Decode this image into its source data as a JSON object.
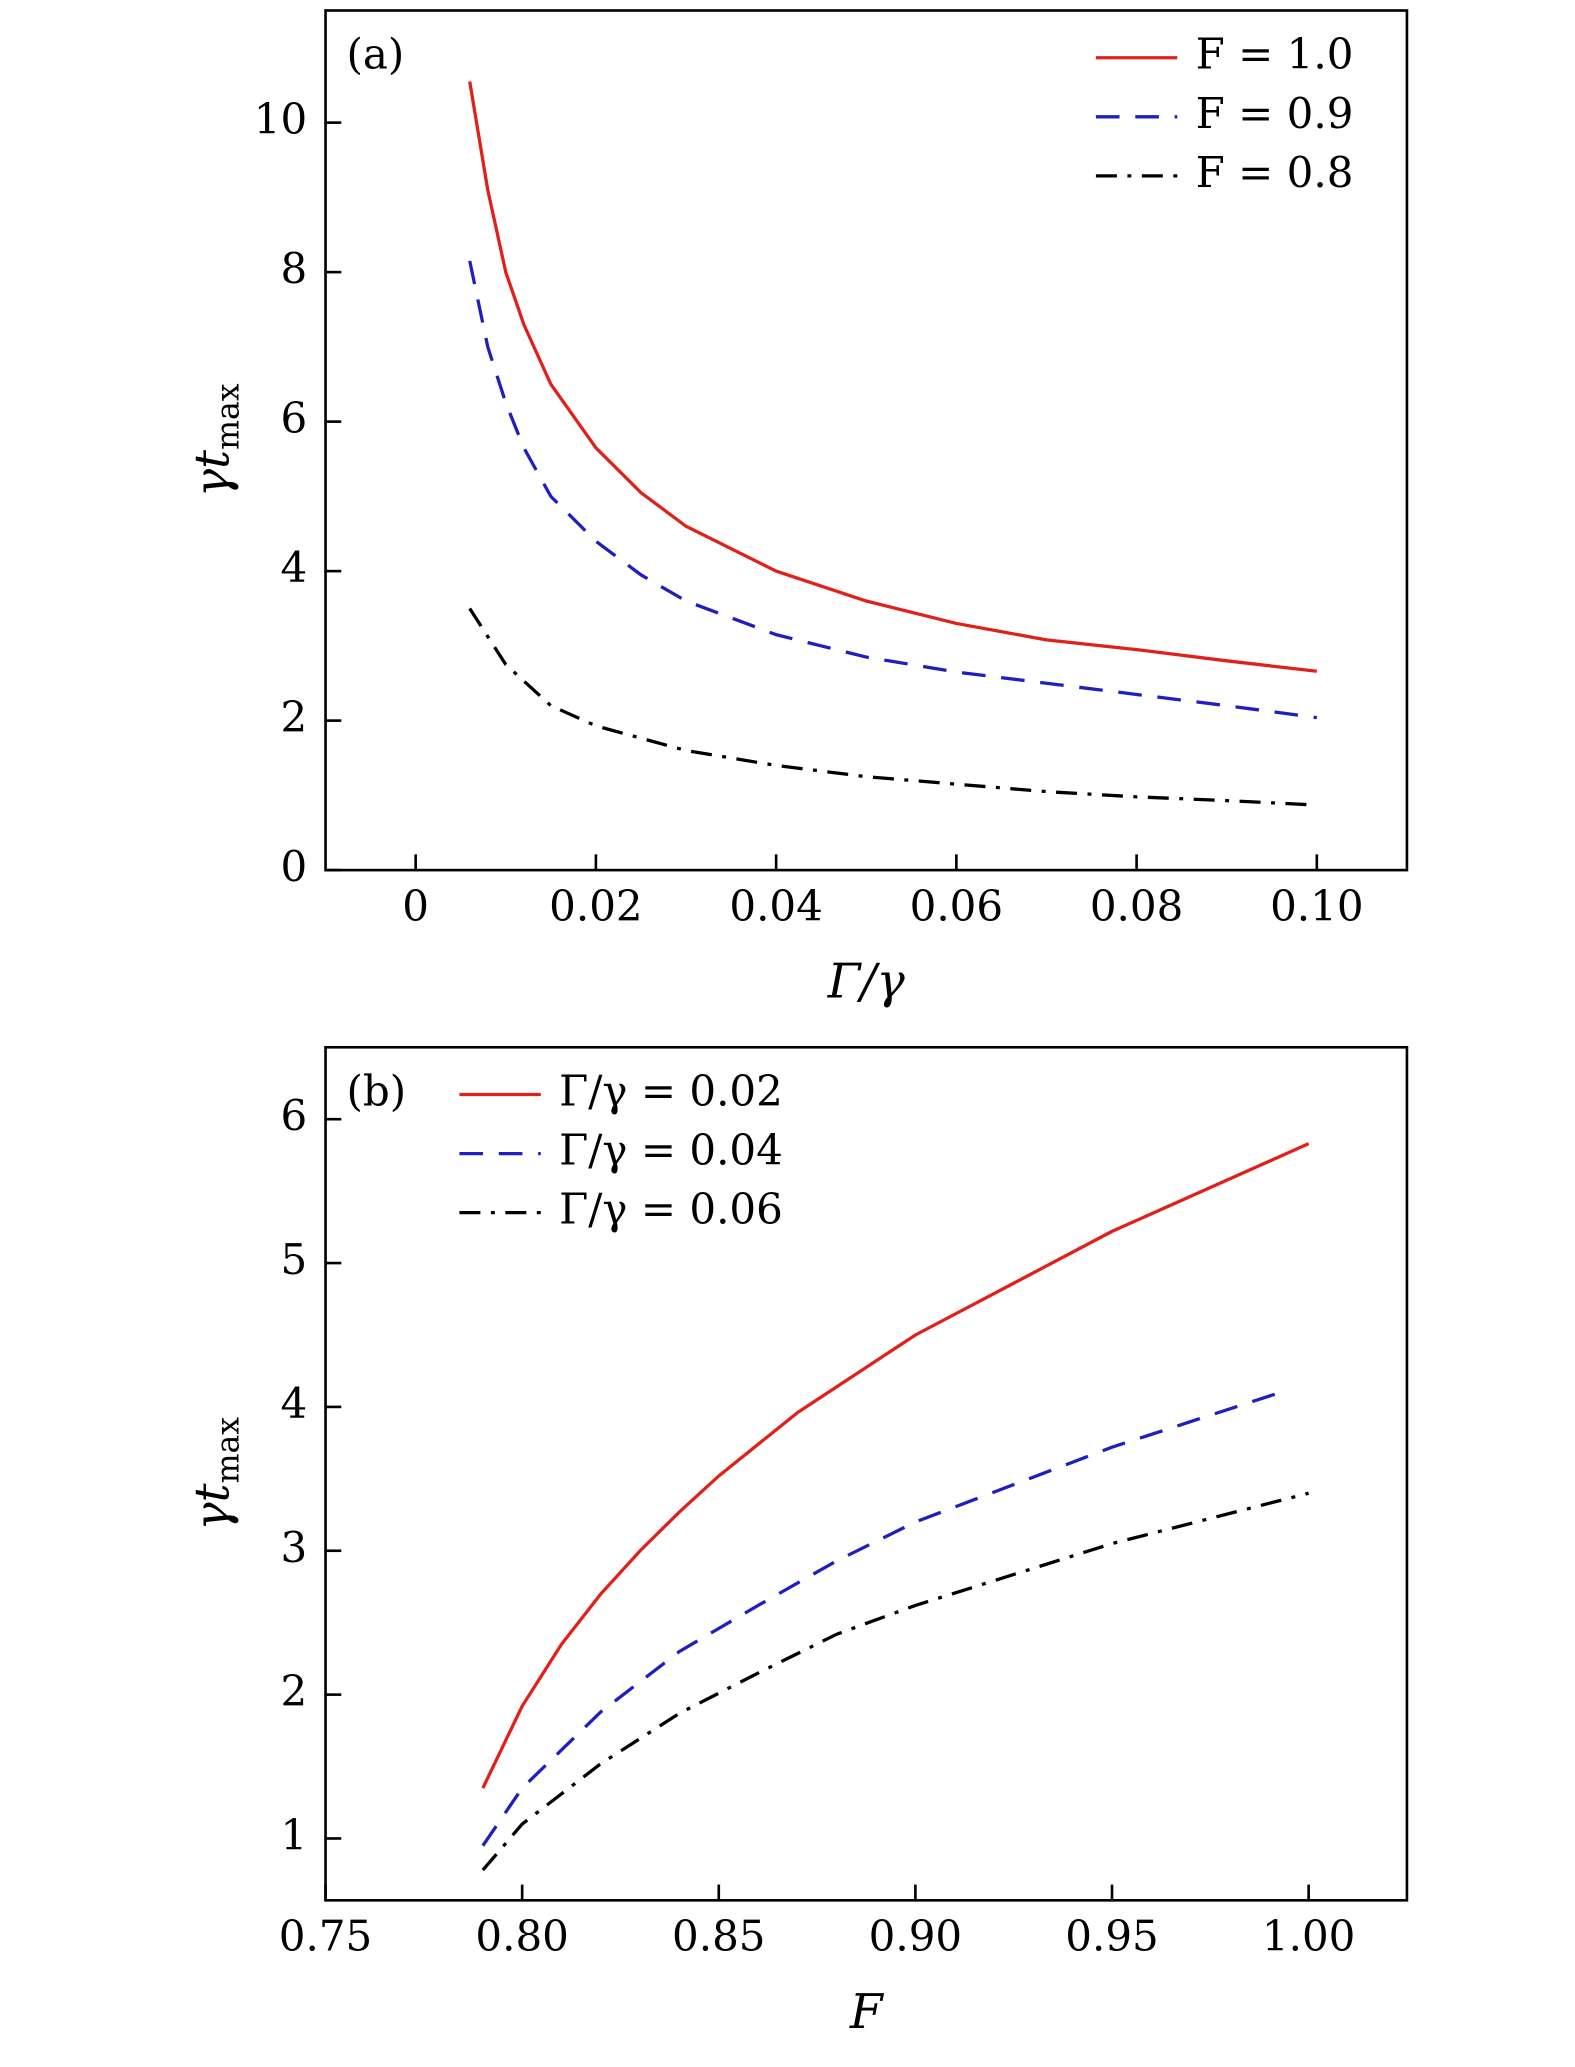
{
  "chart_data": [
    {
      "type": "line",
      "panel": "(a)",
      "xlabel": "Γ/γ",
      "ylabel": "γt",
      "ylabel_subscript": "max",
      "xlim": [
        -0.01,
        0.11
      ],
      "ylim": [
        0,
        11.5
      ],
      "xticks": [
        0,
        0.02,
        0.04,
        0.06,
        0.08,
        {
          "value": 0.1,
          "label": "0.10"
        }
      ],
      "yticks": [
        0,
        2,
        4,
        6,
        8,
        10
      ],
      "legend": "upper right",
      "series": [
        {
          "name": "F = 1.0",
          "color": "#e0201b",
          "style": "solid",
          "x": [
            0.006,
            0.008,
            0.01,
            0.012,
            0.015,
            0.02,
            0.025,
            0.03,
            0.04,
            0.05,
            0.06,
            0.07,
            0.08,
            0.09,
            0.1
          ],
          "values": [
            10.55,
            9.1,
            8.0,
            7.3,
            6.5,
            5.65,
            5.05,
            4.6,
            4.0,
            3.6,
            3.3,
            3.08,
            2.95,
            2.8,
            2.66
          ]
        },
        {
          "name": "F = 0.9",
          "color": "#1f1fbf",
          "style": "dashed",
          "x": [
            0.006,
            0.008,
            0.01,
            0.012,
            0.015,
            0.02,
            0.025,
            0.03,
            0.04,
            0.05,
            0.06,
            0.07,
            0.08,
            0.09,
            0.1
          ],
          "values": [
            8.15,
            7.0,
            6.25,
            5.65,
            5.0,
            4.4,
            3.95,
            3.6,
            3.15,
            2.85,
            2.65,
            2.5,
            2.35,
            2.2,
            2.04
          ]
        },
        {
          "name": "F = 0.8",
          "color": "#000000",
          "style": "dashdot",
          "x": [
            0.006,
            0.01,
            0.015,
            0.02,
            0.03,
            0.04,
            0.05,
            0.06,
            0.07,
            0.08,
            0.09,
            0.1
          ],
          "values": [
            3.5,
            2.75,
            2.2,
            1.93,
            1.6,
            1.4,
            1.25,
            1.15,
            1.05,
            0.98,
            0.93,
            0.87
          ]
        }
      ]
    },
    {
      "type": "line",
      "panel": "(b)",
      "xlabel": "F",
      "ylabel": "γt",
      "ylabel_subscript": "max",
      "xlim": [
        0.75,
        1.025
      ],
      "ylim": [
        0.57,
        6.5
      ],
      "xticks": [
        0.75,
        {
          "value": 0.8,
          "label": "0.80"
        },
        0.85,
        {
          "value": 0.9,
          "label": "0.90"
        },
        0.95,
        {
          "value": 1.0,
          "label": "1.00"
        }
      ],
      "yticks": [
        1,
        2,
        3,
        4,
        5,
        6
      ],
      "legend": "upper left",
      "series": [
        {
          "name": "Γ/γ = 0.02",
          "color": "#e0201b",
          "style": "solid",
          "x": [
            0.79,
            0.8,
            0.81,
            0.82,
            0.83,
            0.84,
            0.85,
            0.87,
            0.9,
            0.95,
            1.0
          ],
          "values": [
            1.35,
            1.92,
            2.35,
            2.7,
            3.0,
            3.27,
            3.52,
            3.96,
            4.5,
            5.22,
            5.83
          ]
        },
        {
          "name": "Γ/γ = 0.04",
          "color": "#1f1fbf",
          "style": "dashed",
          "x": [
            0.79,
            0.8,
            0.82,
            0.84,
            0.86,
            0.88,
            0.9,
            0.95,
            0.995
          ],
          "values": [
            0.95,
            1.35,
            1.88,
            2.3,
            2.62,
            2.93,
            3.2,
            3.72,
            4.12
          ]
        },
        {
          "name": "Γ/γ = 0.06",
          "color": "#000000",
          "style": "dashdot",
          "x": [
            0.79,
            0.8,
            0.82,
            0.84,
            0.86,
            0.88,
            0.9,
            0.95,
            1.0
          ],
          "values": [
            0.78,
            1.1,
            1.52,
            1.87,
            2.15,
            2.42,
            2.62,
            3.05,
            3.4
          ]
        }
      ]
    }
  ]
}
